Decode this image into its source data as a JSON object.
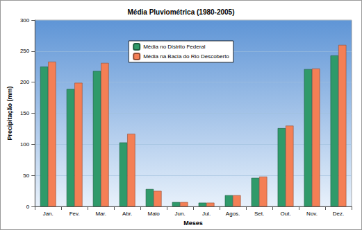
{
  "chart_data": {
    "type": "bar",
    "title": "Média Pluviométrica (1980-2005)",
    "x_label": "Meses",
    "y_label": "Precipitação (mm)",
    "categories": [
      "Jan.",
      "Fev.",
      "Mar.",
      "Abr.",
      "Maio",
      "Jun.",
      "Jul.",
      "Agos.",
      "Set.",
      "Out.",
      "Nov.",
      "Dez."
    ],
    "series": [
      {
        "name": "Média no Distrito Federal",
        "color": "#2f9a6a",
        "values": [
          225,
          189,
          218,
          103,
          28,
          7,
          6,
          18,
          46,
          126,
          221,
          243
        ]
      },
      {
        "name": "Média na Bacia do Rio Descoberto",
        "color": "#f47f55",
        "values": [
          233,
          199,
          231,
          117,
          25,
          7,
          6,
          18,
          48,
          130,
          222,
          260
        ]
      }
    ],
    "ylim": [
      0,
      300
    ],
    "yticks": [
      0,
      50,
      100,
      150,
      200,
      250,
      300
    ],
    "grid": true,
    "legend": "top"
  }
}
